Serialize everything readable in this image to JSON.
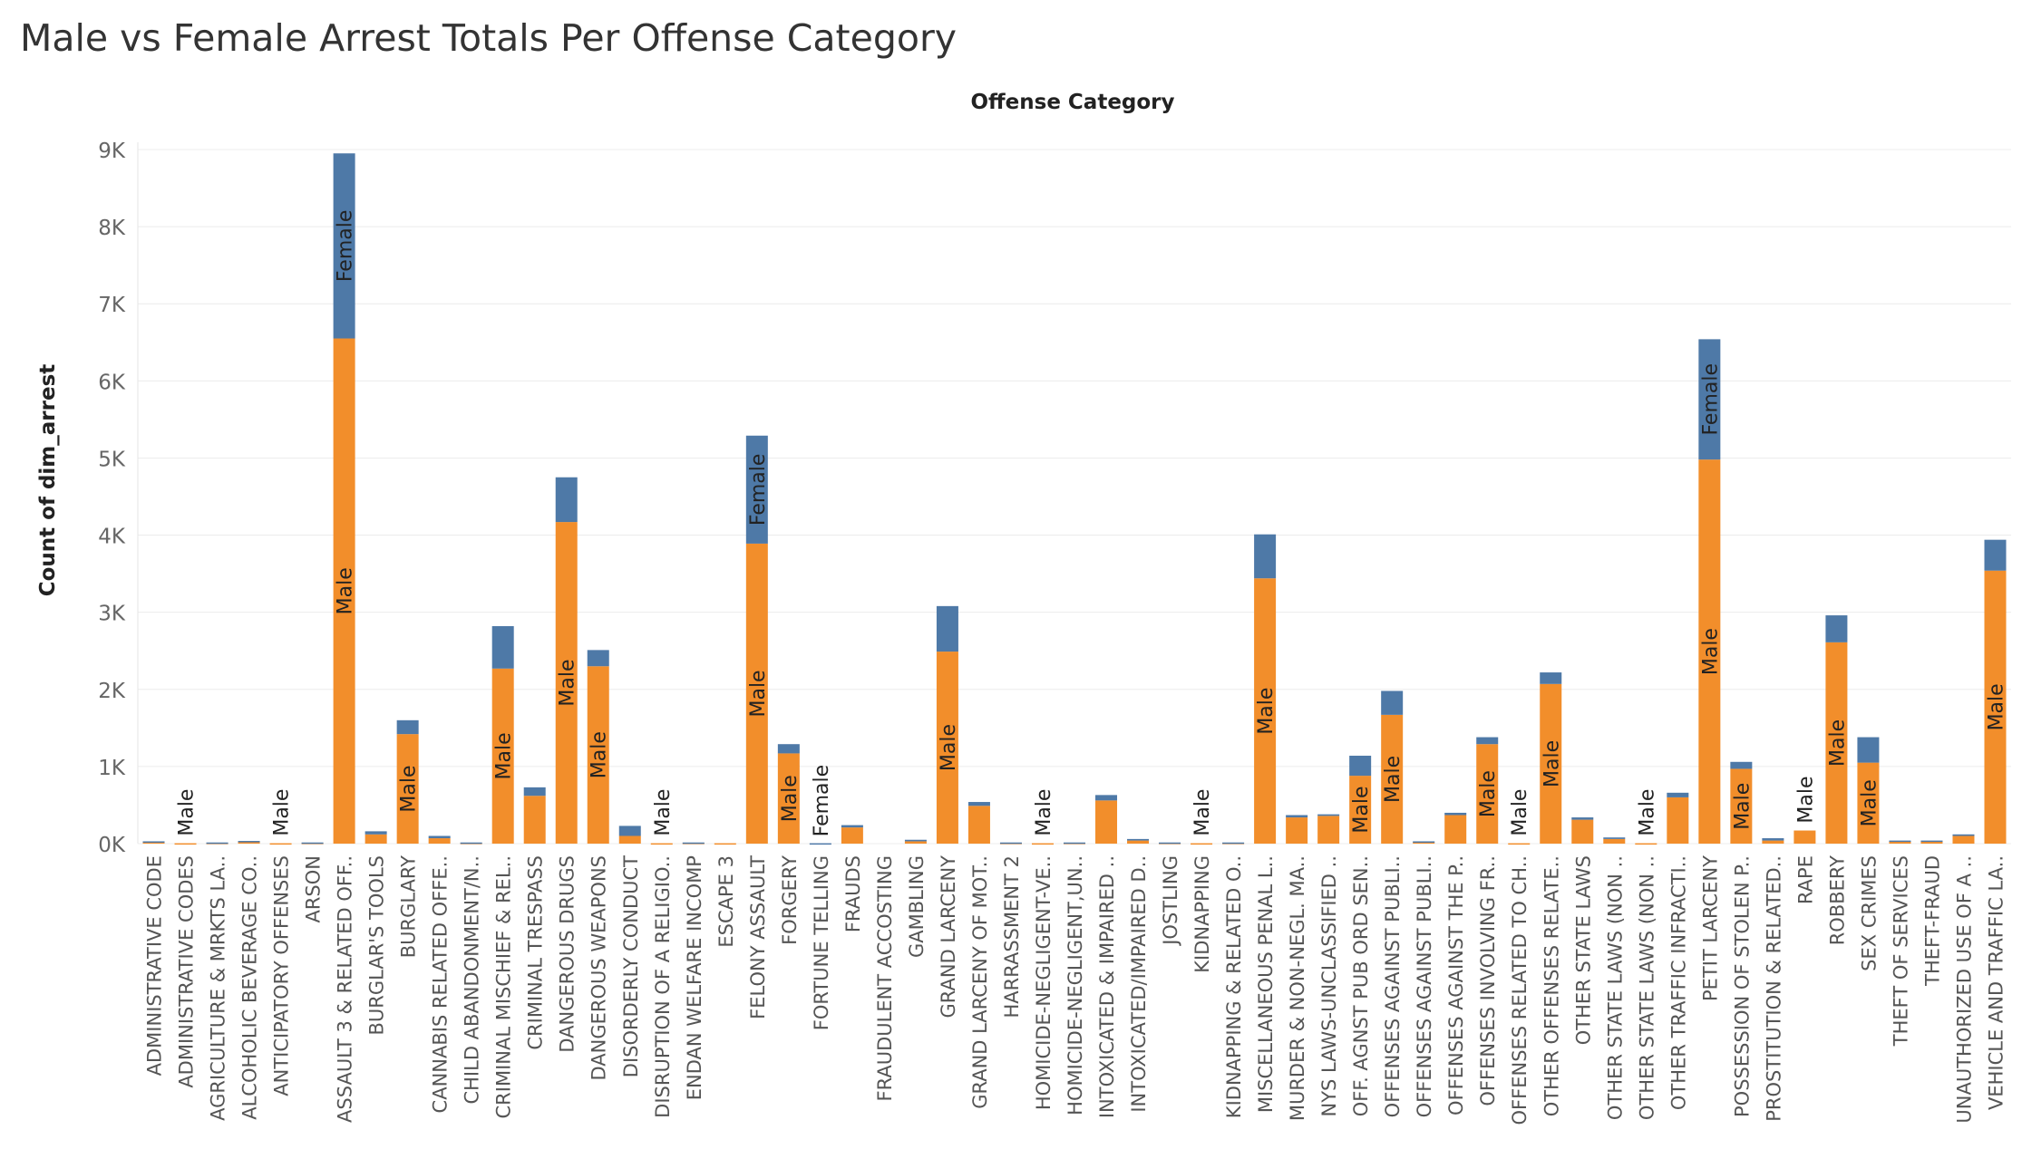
{
  "title": "Male vs Female Arrest Totals Per Offense Category",
  "colors": {
    "Male": "#f28e2b",
    "Female": "#4e79a7"
  },
  "chart_data": {
    "type": "bar",
    "stacked": true,
    "title": "Male vs Female Arrest Totals Per Offense Category",
    "column_header": "Offense Category",
    "ylabel": "Count of dim_arrest",
    "ylim": [
      0,
      9000
    ],
    "yticks": [
      0,
      1000,
      2000,
      3000,
      4000,
      5000,
      6000,
      7000,
      8000,
      9000
    ],
    "ytick_labels": [
      "0K",
      "1K",
      "2K",
      "3K",
      "4K",
      "5K",
      "6K",
      "7K",
      "8K",
      "9K"
    ],
    "grid": true,
    "categories": [
      "ADMINISTRATIVE CODE",
      "ADMINISTRATIVE CODES",
      "AGRICULTURE & MRKTS LA..",
      "ALCOHOLIC BEVERAGE CO..",
      "ANTICIPATORY OFFENSES",
      "ARSON",
      "ASSAULT 3 & RELATED OFF..",
      "BURGLAR'S TOOLS",
      "BURGLARY",
      "CANNABIS RELATED OFFE..",
      "CHILD ABANDONMENT/N..",
      "CRIMINAL MISCHIEF & REL..",
      "CRIMINAL TRESPASS",
      "DANGEROUS DRUGS",
      "DANGEROUS WEAPONS",
      "DISORDERLY CONDUCT",
      "DISRUPTION OF A RELIGIO..",
      "ENDAN WELFARE INCOMP",
      "ESCAPE 3",
      "FELONY ASSAULT",
      "FORGERY",
      "FORTUNE TELLING",
      "FRAUDS",
      "FRAUDULENT ACCOSTING",
      "GAMBLING",
      "GRAND LARCENY",
      "GRAND LARCENY OF MOT..",
      "HARRASSMENT 2",
      "HOMICIDE-NEGLIGENT-VE..",
      "HOMICIDE-NEGLIGENT,UN..",
      "INTOXICATED & IMPAIRED ..",
      "INTOXICATED/IMPAIRED D..",
      "JOSTLING",
      "KIDNAPPING",
      "KIDNAPPING & RELATED O..",
      "MISCELLANEOUS PENAL L..",
      "MURDER & NON-NEGL. MA..",
      "NYS LAWS-UNCLASSIFIED ..",
      "OFF. AGNST PUB ORD SEN..",
      "OFFENSES AGAINST PUBLI..",
      "OFFENSES AGAINST PUBLI..",
      "OFFENSES AGAINST THE P..",
      "OFFENSES INVOLVING FR..",
      "OFFENSES RELATED TO CH..",
      "OTHER OFFENSES RELATE..",
      "OTHER STATE LAWS",
      "OTHER STATE LAWS (NON ..",
      "OTHER STATE LAWS (NON ..",
      "OTHER TRAFFIC INFRACTI..",
      "PETIT LARCENY",
      "POSSESSION OF STOLEN P..",
      "PROSTITUTION & RELATED..",
      "RAPE",
      "ROBBERY",
      "SEX CRIMES",
      "THEFT OF SERVICES",
      "THEFT-FRAUD",
      "UNAUTHORIZED USE OF A ..",
      "VEHICLE AND TRAFFIC LA.."
    ],
    "series": [
      {
        "name": "Male",
        "values": [
          20,
          5,
          10,
          25,
          5,
          10,
          6550,
          120,
          1420,
          70,
          10,
          2270,
          620,
          4170,
          2300,
          100,
          5,
          10,
          5,
          3890,
          1170,
          0,
          210,
          0,
          30,
          2490,
          490,
          10,
          5,
          10,
          560,
          40,
          10,
          5,
          10,
          3440,
          340,
          360,
          880,
          1670,
          20,
          370,
          1290,
          5,
          2070,
          310,
          60,
          5,
          600,
          4980,
          970,
          40,
          170,
          2610,
          1050,
          30,
          30,
          100,
          3540
        ]
      },
      {
        "name": "Female",
        "values": [
          10,
          0,
          5,
          10,
          0,
          5,
          2400,
          40,
          180,
          30,
          5,
          550,
          110,
          580,
          210,
          130,
          0,
          5,
          0,
          1400,
          120,
          5,
          30,
          0,
          20,
          590,
          50,
          5,
          0,
          5,
          70,
          20,
          5,
          0,
          5,
          570,
          30,
          20,
          260,
          310,
          10,
          30,
          90,
          0,
          150,
          30,
          20,
          0,
          60,
          1560,
          90,
          30,
          0,
          350,
          330,
          10,
          10,
          20,
          400
        ]
      }
    ],
    "segment_labels": [
      {
        "category": "ADMINISTRATIVE CODES",
        "text": "Male"
      },
      {
        "category": "ANTICIPATORY OFFENSES",
        "text": "Male"
      },
      {
        "category": "ASSAULT 3 & RELATED OFF..",
        "text": "Male",
        "series": "Male"
      },
      {
        "category": "ASSAULT 3 & RELATED OFF..",
        "text": "Female",
        "series": "Female"
      },
      {
        "category": "BURGLARY",
        "text": "Male",
        "series": "Male"
      },
      {
        "category": "CRIMINAL MISCHIEF & REL..",
        "text": "Male",
        "series": "Male"
      },
      {
        "category": "DANGEROUS DRUGS",
        "text": "Male",
        "series": "Male"
      },
      {
        "category": "DANGEROUS WEAPONS",
        "text": "Male",
        "series": "Male"
      },
      {
        "category": "DISRUPTION OF A RELIGIO..",
        "text": "Male"
      },
      {
        "category": "FELONY ASSAULT",
        "text": "Male",
        "series": "Male"
      },
      {
        "category": "FELONY ASSAULT",
        "text": "Female",
        "series": "Female"
      },
      {
        "category": "FORGERY",
        "text": "Male",
        "series": "Male"
      },
      {
        "category": "FORTUNE TELLING",
        "text": "Female"
      },
      {
        "category": "GRAND LARCENY",
        "text": "Male",
        "series": "Male"
      },
      {
        "category": "HOMICIDE-NEGLIGENT-VE..",
        "text": "Male"
      },
      {
        "category": "KIDNAPPING",
        "text": "Male"
      },
      {
        "category": "MISCELLANEOUS PENAL L..",
        "text": "Male",
        "series": "Male"
      },
      {
        "category": "OFF. AGNST PUB ORD SEN..",
        "text": "Male",
        "series": "Male"
      },
      {
        "category": "OFFENSES AGAINST PUBLI..",
        "text": "Male",
        "series": "Male",
        "index": 39
      },
      {
        "category": "OFFENSES INVOLVING FR..",
        "text": "Male",
        "series": "Male"
      },
      {
        "category": "OFFENSES RELATED TO CH..",
        "text": "Male"
      },
      {
        "category": "OTHER OFFENSES RELATE..",
        "text": "Male",
        "series": "Male"
      },
      {
        "category": "OTHER STATE LAWS (NON ..",
        "text": "Male",
        "index": 47
      },
      {
        "category": "PETIT LARCENY",
        "text": "Male",
        "series": "Male"
      },
      {
        "category": "PETIT LARCENY",
        "text": "Female",
        "series": "Female"
      },
      {
        "category": "POSSESSION OF STOLEN P..",
        "text": "Male",
        "series": "Male"
      },
      {
        "category": "RAPE",
        "text": "Male"
      },
      {
        "category": "ROBBERY",
        "text": "Male",
        "series": "Male"
      },
      {
        "category": "SEX CRIMES",
        "text": "Male",
        "series": "Male"
      },
      {
        "category": "VEHICLE AND TRAFFIC LA..",
        "text": "Male",
        "series": "Male"
      }
    ]
  }
}
